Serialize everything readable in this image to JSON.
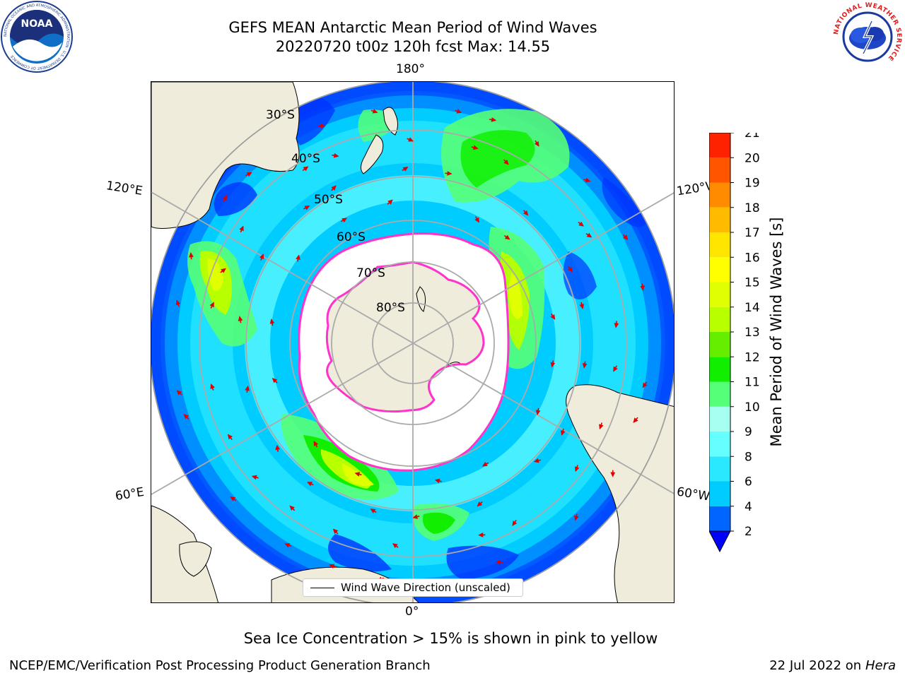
{
  "header": {
    "title_line1": "GEFS MEAN Antarctic Mean Period of Wind Waves",
    "title_line2": "20220720 t00z 120h fcst   Max: 14.55"
  },
  "logos": {
    "noaa": {
      "text": "NOAA",
      "ring_text": "NATIONAL OCEANIC AND ATMOSPHERIC ADMINISTRATION · U.S. DEPARTMENT OF COMMERCE"
    },
    "nws": {
      "ring_text": "NATIONAL WEATHER SERVICE"
    }
  },
  "map": {
    "projection": "south-polar-stereographic",
    "longitude_labels": {
      "top": "180°",
      "bottom": "0°",
      "upper_left": "120°E",
      "upper_right": "120°W",
      "lower_left": "60°E",
      "lower_right": "60°W"
    },
    "latitude_labels": [
      "30°S",
      "40°S",
      "50°S",
      "60°S",
      "70°S",
      "80°S"
    ],
    "legend": {
      "label": "Wind Wave Direction (unscaled)"
    }
  },
  "colorbar": {
    "label": "Mean Period of Wind Waves [s]",
    "ticks": [
      "2",
      "4",
      "6",
      "8",
      "9",
      "10",
      "11",
      "12",
      "13",
      "14",
      "15",
      "16",
      "17",
      "18",
      "19",
      "20",
      "21"
    ],
    "colors": [
      "#0066ff",
      "#00ccff",
      "#2ae8ff",
      "#66ffff",
      "#a6fff0",
      "#55ff77",
      "#11ee00",
      "#66ee00",
      "#b8ff00",
      "#e0ff00",
      "#ffff00",
      "#ffe600",
      "#ffbb00",
      "#ff8c00",
      "#ff5500",
      "#ff2200"
    ],
    "under_color": "#0000ff"
  },
  "footer": {
    "note": "Sea Ice Concentration > 15% is shown in pink to yellow",
    "credit": "NCEP/EMC/Verification Post Processing Product Generation Branch",
    "date": "22 Jul 2022 on ",
    "machine": "Hera"
  }
}
